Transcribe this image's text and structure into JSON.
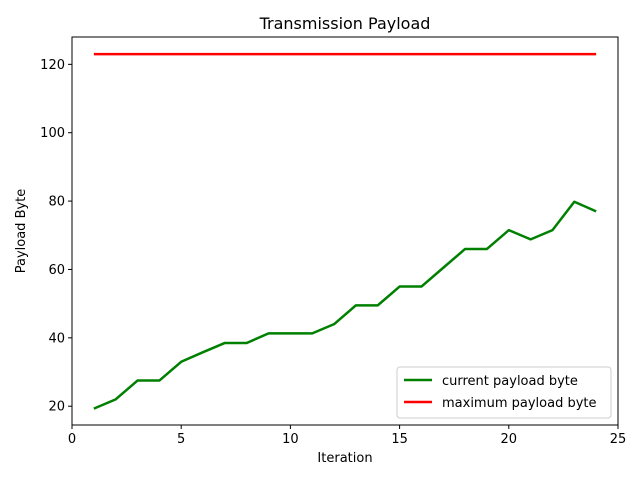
{
  "chart_data": {
    "type": "line",
    "title": "Transmission Payload",
    "xlabel": "Iteration",
    "ylabel": "Payload Byte",
    "xlim": [
      0,
      25
    ],
    "ylim": [
      14.5,
      128
    ],
    "xticks": [
      0,
      5,
      10,
      15,
      20,
      25
    ],
    "yticks": [
      20,
      40,
      60,
      80,
      100,
      120
    ],
    "grid": false,
    "legend_position": "lower-right",
    "series": [
      {
        "name": "current payload byte",
        "color": "#008000",
        "x": [
          1,
          2,
          3,
          4,
          5,
          6,
          7,
          8,
          9,
          10,
          11,
          12,
          13,
          14,
          15,
          16,
          17,
          18,
          19,
          20,
          21,
          22,
          23,
          24
        ],
        "y": [
          19.3,
          22,
          27.5,
          27.5,
          33,
          35.8,
          38.5,
          38.5,
          41.3,
          41.3,
          41.3,
          44,
          49.5,
          49.5,
          55,
          55,
          60.5,
          66,
          66,
          71.5,
          68.8,
          71.5,
          79.8,
          77
        ]
      },
      {
        "name": "maximum payload byte",
        "color": "#ff0000",
        "x": [
          1,
          24
        ],
        "y": [
          123,
          123
        ]
      }
    ]
  }
}
